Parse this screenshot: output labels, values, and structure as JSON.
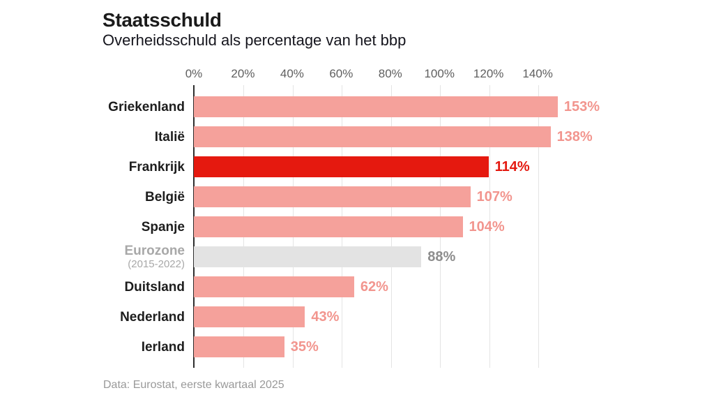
{
  "header": {
    "title": "Staatsschuld",
    "subtitle": "Overheidsschuld als percentage van het bbp"
  },
  "chart_data": {
    "type": "bar",
    "orientation": "horizontal",
    "title": "Staatsschuld",
    "subtitle": "Overheidsschuld als percentage van het bbp",
    "xlabel": "",
    "ylabel": "",
    "xlim": [
      0,
      157
    ],
    "x_ticks": [
      0,
      20,
      40,
      60,
      80,
      100,
      120,
      140
    ],
    "x_tick_labels": [
      "0%",
      "20%",
      "40%",
      "60%",
      "80%",
      "100%",
      "120%",
      "140%"
    ],
    "grid": "vertical-only",
    "legend": "none",
    "categories": [
      "Griekenland",
      "Italië",
      "Frankrijk",
      "België",
      "Spanje",
      "Eurozone (2015-2022)",
      "Duitsland",
      "Nederland",
      "Ierland"
    ],
    "values": [
      153,
      138,
      114,
      107,
      104,
      88,
      62,
      43,
      35
    ],
    "rows": [
      {
        "label": "Griekenland",
        "sublabel": "",
        "value": 153,
        "value_label": "153%",
        "variant": "pink"
      },
      {
        "label": "Italië",
        "sublabel": "",
        "value": 138,
        "value_label": "138%",
        "variant": "pink"
      },
      {
        "label": "Frankrijk",
        "sublabel": "",
        "value": 114,
        "value_label": "114%",
        "variant": "red"
      },
      {
        "label": "België",
        "sublabel": "",
        "value": 107,
        "value_label": "107%",
        "variant": "pink"
      },
      {
        "label": "Spanje",
        "sublabel": "",
        "value": 104,
        "value_label": "104%",
        "variant": "pink"
      },
      {
        "label": "Eurozone",
        "sublabel": "(2015-2022)",
        "value": 88,
        "value_label": "88%",
        "variant": "gray"
      },
      {
        "label": "Duitsland",
        "sublabel": "",
        "value": 62,
        "value_label": "62%",
        "variant": "pink"
      },
      {
        "label": "Nederland",
        "sublabel": "",
        "value": 43,
        "value_label": "43%",
        "variant": "pink"
      },
      {
        "label": "Ierland",
        "sublabel": "",
        "value": 35,
        "value_label": "35%",
        "variant": "pink"
      }
    ],
    "colors": {
      "pink_bar": "#f5a19b",
      "pink_text": "#f2958e",
      "red_bar": "#e5190f",
      "red_text": "#e41910",
      "gray_bar": "#e3e3e3",
      "gray_text": "#8d8d8d",
      "axis_line": "#2e2e2e",
      "gridline": "#e4e4e4"
    }
  },
  "footer": {
    "source": "Data: Eurostat, eerste kwartaal 2025"
  }
}
